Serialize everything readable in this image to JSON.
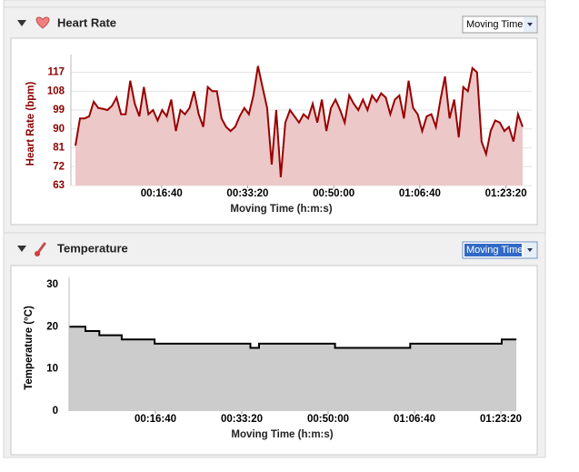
{
  "chart_data": [
    {
      "type": "line",
      "title": "Heart Rate",
      "dropdown": "Moving Time",
      "xlabel": "Moving Time (h:m:s)",
      "ylabel": "Heart Rate (bpm)",
      "color": "#990000",
      "fill": "#ecc8c8",
      "tick_color": "#8b0000",
      "grid": true,
      "xlim": [
        -53,
        5300
      ],
      "ylim": [
        63,
        122
      ],
      "xticks": [
        {
          "value": 1000,
          "label": "00:16:40"
        },
        {
          "value": 2000,
          "label": "00:33:20"
        },
        {
          "value": 3000,
          "label": "00:50:00"
        },
        {
          "value": 4000,
          "label": "01:06:40"
        },
        {
          "value": 5000,
          "label": "01:23:20"
        }
      ],
      "yticks": [
        63,
        72,
        81,
        90,
        99,
        108,
        117
      ],
      "x": [
        0,
        53,
        106,
        159,
        212,
        265,
        318,
        371,
        424,
        477,
        530,
        583,
        636,
        689,
        742,
        795,
        848,
        901,
        954,
        1007,
        1060,
        1113,
        1166,
        1219,
        1272,
        1325,
        1378,
        1431,
        1484,
        1537,
        1590,
        1643,
        1696,
        1749,
        1802,
        1855,
        1908,
        1961,
        2014,
        2067,
        2120,
        2173,
        2226,
        2279,
        2332,
        2385,
        2438,
        2491,
        2544,
        2597,
        2650,
        2703,
        2756,
        2809,
        2862,
        2915,
        2968,
        3021,
        3074,
        3127,
        3180,
        3233,
        3286,
        3339,
        3392,
        3445,
        3498,
        3551,
        3604,
        3657,
        3710,
        3763,
        3816,
        3869,
        3922,
        3975,
        4028,
        4081,
        4134,
        4187,
        4240,
        4293,
        4346,
        4399,
        4452,
        4505,
        4558,
        4611,
        4664,
        4717,
        4770,
        4823,
        4876,
        4929,
        4982,
        5035,
        5088,
        5141,
        5194
      ],
      "values": [
        82,
        95,
        95,
        96,
        103,
        100,
        99.6,
        99,
        101,
        105,
        97,
        97,
        113,
        102,
        96,
        110,
        97,
        99,
        94,
        99,
        96,
        104,
        89,
        99,
        97,
        100,
        108,
        97,
        91,
        110,
        108,
        108,
        95,
        91,
        89,
        91,
        96,
        100,
        97,
        106,
        120,
        110,
        100,
        73,
        99,
        67,
        93,
        99,
        96,
        93,
        97,
        95,
        102,
        93,
        104,
        89,
        100,
        104,
        99,
        93,
        106,
        102,
        99,
        104,
        99,
        106,
        103,
        107,
        105,
        97,
        104,
        106,
        95,
        113,
        100,
        97,
        89,
        96,
        97,
        91,
        104,
        115,
        95,
        104,
        86,
        110,
        108,
        119,
        117,
        84,
        78,
        89,
        94,
        93,
        89,
        91,
        84,
        97,
        91
      ]
    },
    {
      "type": "line",
      "title": "Temperature",
      "dropdown": "Moving Time",
      "xlabel": "Moving Time (h:m:s)",
      "ylabel": "Temperature (°C)",
      "color": "#000000",
      "fill": "#cccccc",
      "tick_color": "#000000",
      "grid": false,
      "xlim": [
        0,
        5400
      ],
      "ylim": [
        0,
        30
      ],
      "xticks": [
        {
          "value": 1000,
          "label": "00:16:40"
        },
        {
          "value": 2000,
          "label": "00:33:20"
        },
        {
          "value": 3000,
          "label": "00:50:00"
        },
        {
          "value": 4000,
          "label": "01:06:40"
        },
        {
          "value": 5000,
          "label": "01:23:20"
        }
      ],
      "yticks": [
        0,
        10,
        20,
        30
      ],
      "x": [
        0,
        190,
        190,
        350,
        350,
        610,
        610,
        990,
        990,
        2100,
        2100,
        2200,
        2200,
        3080,
        3080,
        3950,
        3950,
        5010,
        5010,
        5180
      ],
      "values": [
        20,
        20,
        19,
        19,
        18,
        18,
        17,
        17,
        16,
        16,
        15,
        15,
        16,
        16,
        15,
        15,
        16,
        16,
        17,
        17
      ]
    }
  ]
}
